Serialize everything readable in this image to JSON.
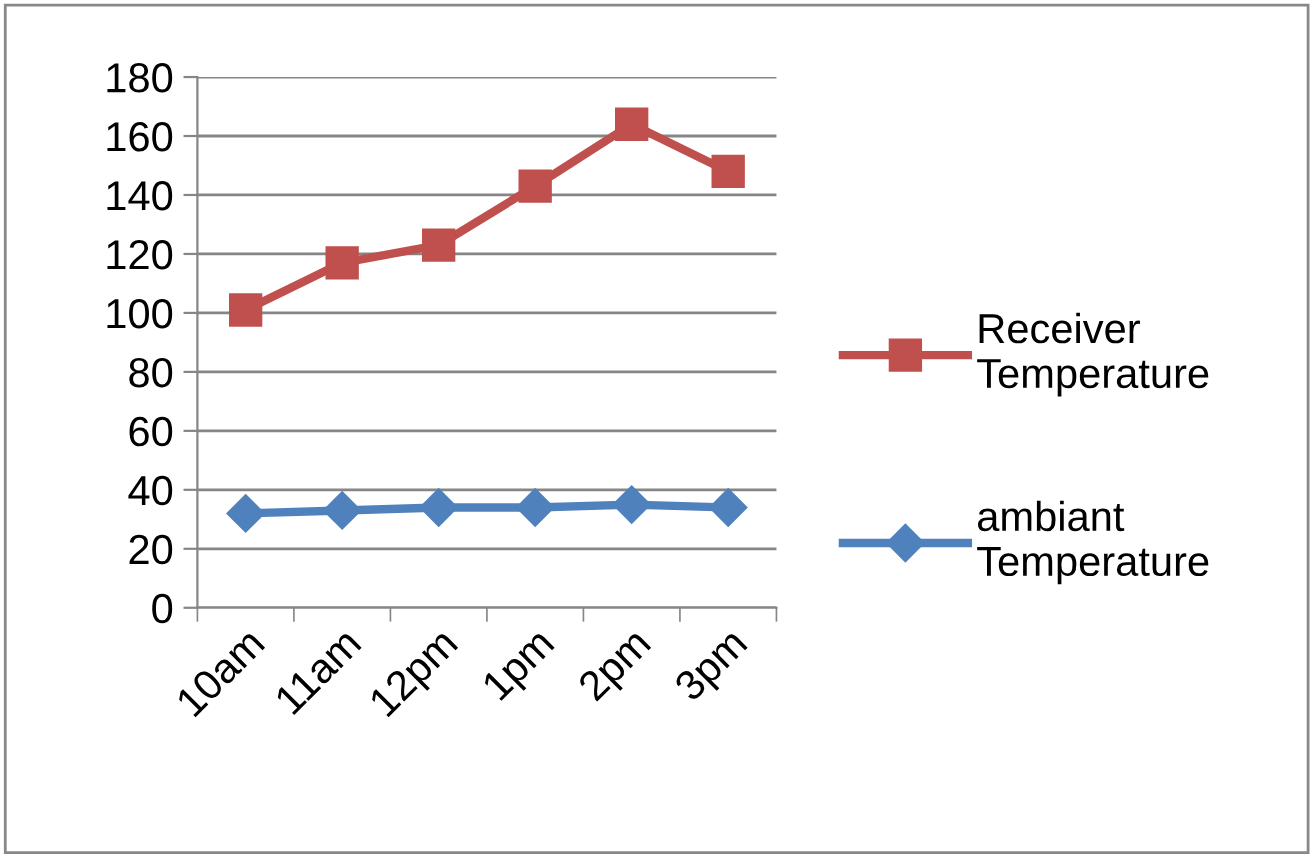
{
  "chart_data": {
    "type": "line",
    "categories": [
      "10am",
      "11am",
      "12pm",
      "1pm",
      "2pm",
      "3pm"
    ],
    "series": [
      {
        "name": "Receiver Temperature",
        "color": "#c0504d",
        "marker": "square",
        "values": [
          101,
          117,
          123,
          143,
          164,
          148
        ]
      },
      {
        "name": "ambiant Temperature",
        "color": "#4f81bd",
        "marker": "diamond",
        "values": [
          32,
          33,
          34,
          34,
          35,
          34
        ]
      }
    ],
    "ylim": [
      0,
      180
    ],
    "yticks": [
      0,
      20,
      40,
      60,
      80,
      100,
      120,
      140,
      160,
      180
    ],
    "grid": "y",
    "legend": "right",
    "line_style": "solid"
  }
}
